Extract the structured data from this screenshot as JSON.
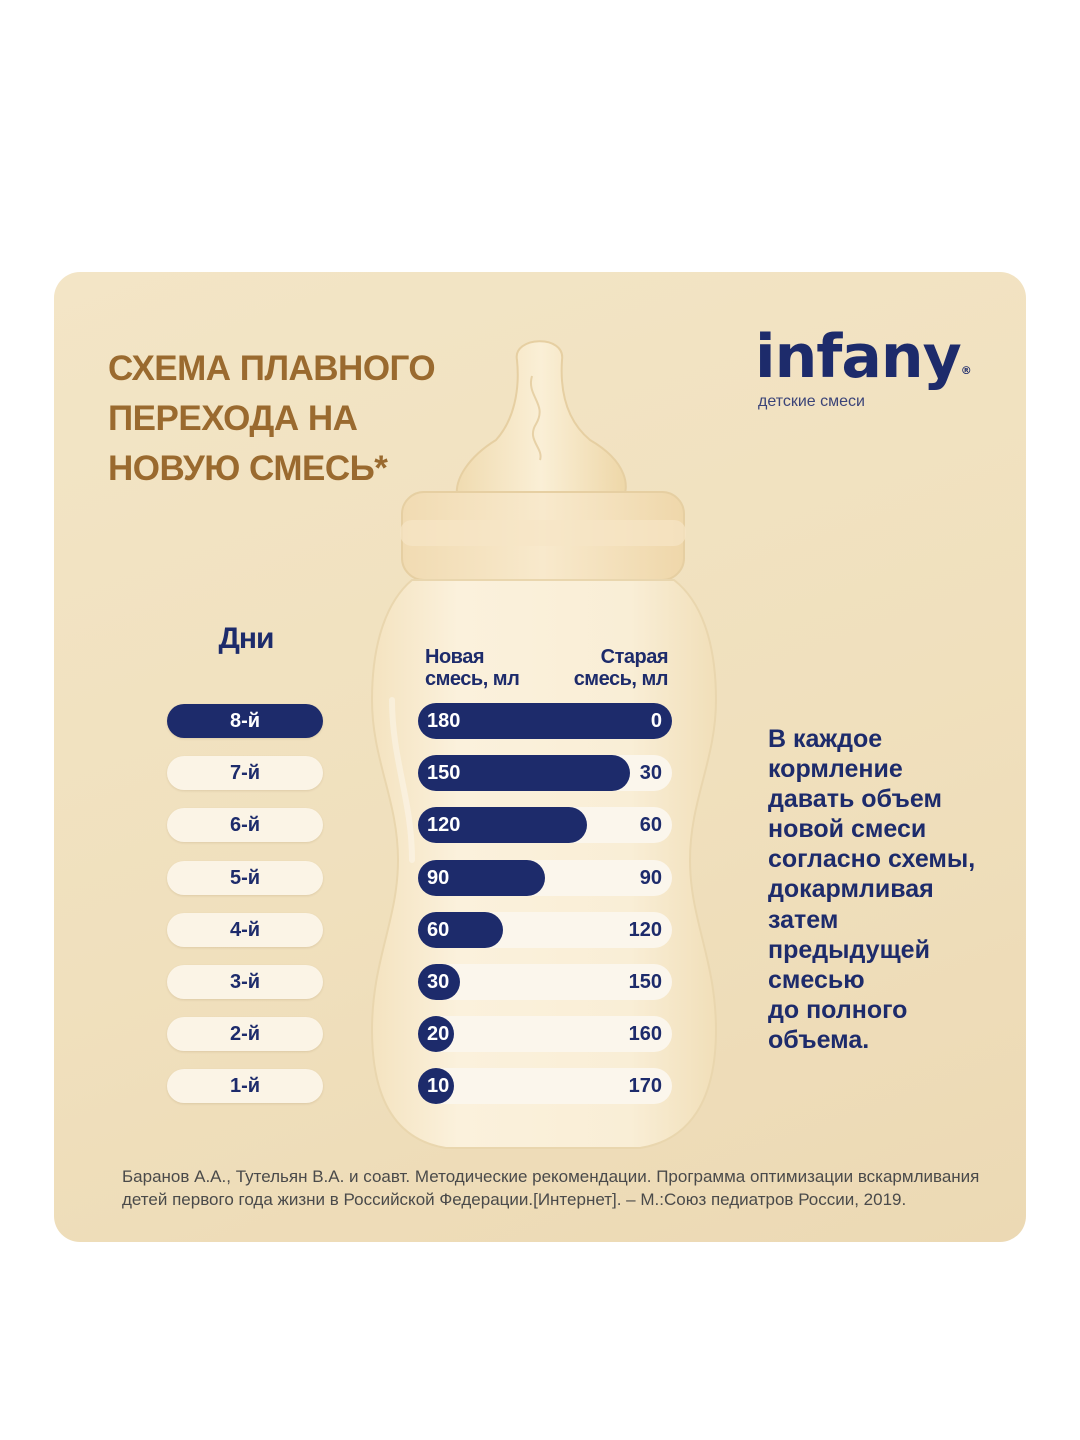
{
  "title_lines": [
    "СХЕМА ПЛАВНОГО",
    "ПЕРЕХОДА НА",
    "НОВУЮ СМЕСЬ*"
  ],
  "brand": {
    "name": "infany",
    "reg_mark": "®",
    "tagline": "детские смеси"
  },
  "colors": {
    "title": "#9a6a2f",
    "navy": "#1d2b6b",
    "card_background": "#f0e0bd",
    "pill_background": "#fbf4e6"
  },
  "chart_data": {
    "type": "bar",
    "days_header": "Дни",
    "new_header": [
      "Новая",
      "смесь, мл"
    ],
    "old_header": [
      "Старая",
      "смесь, мл"
    ],
    "total_ml": 180,
    "categories": [
      "8-й",
      "7-й",
      "6-й",
      "5-й",
      "4-й",
      "3-й",
      "2-й",
      "1-й"
    ],
    "highlighted_category": "8-й",
    "new_values": [
      180,
      150,
      120,
      90,
      60,
      30,
      20,
      10
    ],
    "old_values": [
      0,
      30,
      60,
      90,
      120,
      150,
      160,
      170
    ]
  },
  "instruction_lines": [
    "В каждое",
    "кормление",
    "давать объем",
    "новой смеси",
    "согласно схемы,",
    "докармливая",
    "затем",
    "предыдущей",
    "смесью",
    "до полного",
    "объема."
  ],
  "footnote_lines": [
    "Баранов А.А., Тутельян В.А. и соавт. Методические рекомендации. Программа оптимизации вскармливания",
    "детей первого года жизни в Российской Федерации.[Интернет]. – М.:Союз педиатров России, 2019."
  ]
}
